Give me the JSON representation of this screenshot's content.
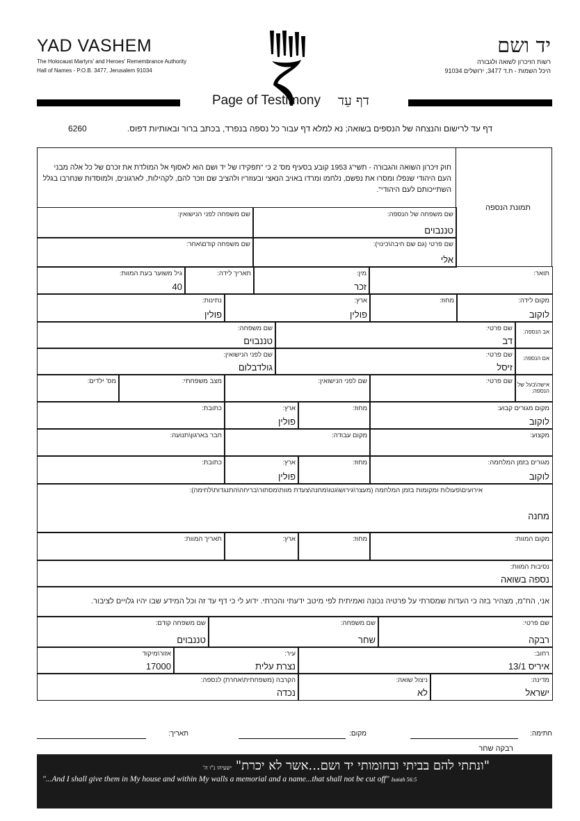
{
  "header": {
    "brand_en": "YAD VASHEM",
    "authority_en": "The Holocaust Martyrs' and Heroes' Remembrance Authority",
    "address_en": "Hall of Names - P.O.B. 3477, Jerusalem 91034",
    "brand_he": "יד ושם",
    "authority_he": "רשות הזיכרון לשואה ולגבורה",
    "address_he": "היכל השמות - ת.ד 3477, ירושלים 91034",
    "title_en": "Page of Testimony",
    "title_he": "דף עֵד",
    "instructions": "דף עד לרישום והנצחה של הנספים בשואה; נא למלא דף עבור כל נספה בנפרד, בכתב ברור ובאותיות דפוס.",
    "form_number": "6260"
  },
  "law_text": "חוק זיכרון השואה והגבורה - תשי\"ג 1953 קובע בסעיף מס' 2 כי \"תפקידו של יד ושם הוא לאסוף אל המולדת את זכרם של כל אלה מבני העם היהודי שנפלו ומסרו את נפשם, נלחמו ומרדו באויב הנאצי ובעוזריו ולהציב שם וזכר להם, לקהילות, לארגונים, ולמוסדות שנחרבו בגלל השתייכותם לעם היהודי\".",
  "photo_label": "תמונת הנספה",
  "fields": [
    {
      "label": "שם משפחה של הנספה:",
      "value": "טננבוים"
    },
    {
      "label": "שם משפחה לפני הנישואין:",
      "value": ""
    },
    {
      "label": "שם פרטי (גם שם חיבה\\כינוי):",
      "value": "אלי"
    },
    {
      "label": "שם משפחה קודם\\אחר:",
      "value": ""
    },
    {
      "label": "תואר:",
      "value": ""
    },
    {
      "label": "מין:",
      "value": "זכר"
    },
    {
      "label": "תאריך לידה:",
      "value": ""
    },
    {
      "label": "גיל משוער בעת המוות:",
      "value": "40"
    },
    {
      "label": "מקום לידה:",
      "value": "לוקוב"
    },
    {
      "label": "מחוז:",
      "value": ""
    },
    {
      "label": "ארץ:",
      "value": "פולין"
    },
    {
      "label": "נתינות:",
      "value": "פולין"
    },
    {
      "label": "אב הנספה:",
      "value": ""
    },
    {
      "label": "שם פרטי:",
      "value": "דב"
    },
    {
      "label": "שם משפחה:",
      "value": "טננבוים"
    },
    {
      "label": "אם הנספה:",
      "value": ""
    },
    {
      "label": "שם פרטי:",
      "value": "זיסל"
    },
    {
      "label": "שם לפני הנישואין:",
      "value": "גולדבלום"
    },
    {
      "label": "אישה\\בעל של הנספה:",
      "value": ""
    },
    {
      "label": "שם פרטי:",
      "value": ""
    },
    {
      "label": "שם לפני הנישואין:",
      "value": ""
    },
    {
      "label": "מצב משפחתי:",
      "value": ""
    },
    {
      "label": "מס' ילדים:",
      "value": ""
    },
    {
      "label": "מקום מגורים קבוע:",
      "value": "לוקוב"
    },
    {
      "label": "מחוז:",
      "value": ""
    },
    {
      "label": "ארץ:",
      "value": "פולין"
    },
    {
      "label": "כתובת:",
      "value": ""
    },
    {
      "label": "מקצוע:",
      "value": ""
    },
    {
      "label": "מקום עבודה:",
      "value": ""
    },
    {
      "label": "חבר בארגון\\תנועה:",
      "value": ""
    },
    {
      "label": "מגורים בזמן המלחמה:",
      "value": "לוקוב"
    },
    {
      "label": "מחוז:",
      "value": ""
    },
    {
      "label": "ארץ:",
      "value": "פולין"
    },
    {
      "label": "כתובת:",
      "value": ""
    },
    {
      "label": "אירועים\\פעולות ומקומות בזמן המלחמה (מעצר\\גירוש\\גטו\\מחנה\\צעדת מוות\\מסתור\\בריחה\\התנגדות\\לחימה):",
      "value": "מחנה"
    },
    {
      "label": "מקום המוות:",
      "value": ""
    },
    {
      "label": "מחוז:",
      "value": ""
    },
    {
      "label": "ארץ:",
      "value": ""
    },
    {
      "label": "תאריך המוות:",
      "value": ""
    },
    {
      "label": "נסיבות המוות:",
      "value": "נספה בשואה"
    },
    {
      "label": "אני, הח\"מ, מצהיר בזה כי העדות שמסרתי על פרטיה נכונה ואמיתית לפי מיטב ידעתי והכרתי. ידוע לי כי דף עד זה וכל המידע שבו יהיו גלויים לציבור.",
      "value": ""
    },
    {
      "label": "שם פרטי:",
      "value": "רבקה"
    },
    {
      "label": "שם משפחה:",
      "value": "שחר"
    },
    {
      "label": "שם משפחה קודם:",
      "value": "טננבוים"
    },
    {
      "label": "רחוב:",
      "value": "איריס 13/1"
    },
    {
      "label": "עיר:",
      "value": "נצרת עלית"
    },
    {
      "label": "אזור\\מיקוד",
      "value": "17000"
    },
    {
      "label": "מדינה:",
      "value": "ישראל"
    },
    {
      "label": "ניצול שואה:",
      "value": "לא"
    },
    {
      "label": "הקרבה (משפחתית\\אחרת) לנספה:",
      "value": "נכדה"
    }
  ],
  "signature": {
    "signature_label": "חתימה:",
    "place_label": "מקום:",
    "date_label": "תאריך:",
    "signer_name": "רבקה שחר"
  },
  "footer": {
    "quote_he": "\"ונתתי להם בביתי ובחומותי יד ושם...אשר לא יכרת\"",
    "source_he": "ישעיהו נ\"ו ה'",
    "quote_en": "\"...And I shall give them in My house and within My walls a memorial and a name...that shall not be cut off\"",
    "source_en": "Isaiah 56:5"
  }
}
